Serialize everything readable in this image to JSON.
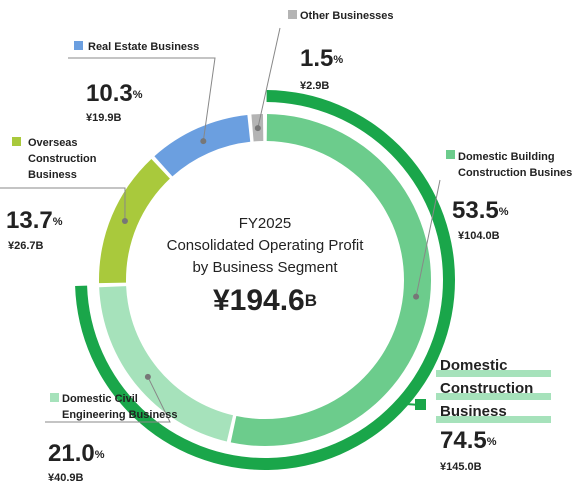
{
  "chart_data": {
    "type": "pie",
    "title_lines": [
      "FY2025",
      "Consolidated Operating Profit",
      "by Business Segment"
    ],
    "total": 194.6,
    "total_label": "¥194.6B",
    "categories": [
      "Domestic Building Construction Business",
      "Domestic Civil Engineering Business",
      "Overseas Construction Business",
      "Real Estate Business",
      "Other Businesses"
    ],
    "values": [
      53.5,
      21.0,
      13.7,
      10.3,
      1.5
    ],
    "value_labels": [
      "53.5%",
      "21.0%",
      "13.7%",
      "10.3%",
      "1.5%"
    ],
    "amounts": [
      104.0,
      40.9,
      26.7,
      19.9,
      2.9
    ],
    "amount_labels": [
      "¥104.0B",
      "¥40.9B",
      "¥26.7B",
      "¥19.9B",
      "¥2.9B"
    ],
    "colors": [
      "#6ccc8c",
      "#a6e2bb",
      "#a9c93c",
      "#6b9fe0",
      "#b4b4b4"
    ],
    "groups": [
      {
        "name": "Domestic Construction Business",
        "value": 74.5,
        "value_label": "74.5%",
        "amount": 145.0,
        "amount_label": "¥145.0B",
        "color": "#1aa64a"
      }
    ]
  }
}
